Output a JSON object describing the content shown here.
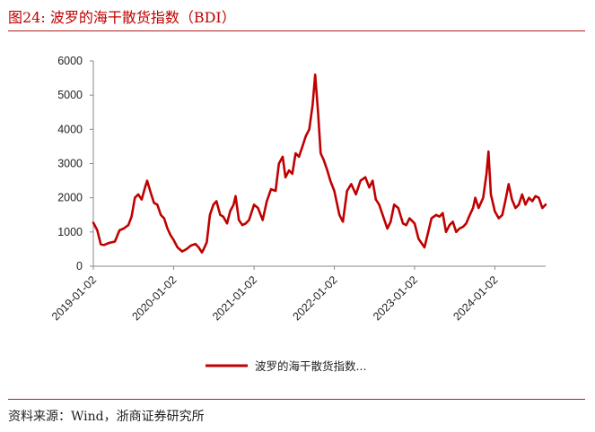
{
  "figure": {
    "title": "图24:  波罗的海干散货指数（BDI）",
    "source": "资料来源：Wind，浙商证券研究所"
  },
  "chart_data": {
    "type": "line",
    "title": "",
    "xlabel": "",
    "ylabel": "",
    "ylim": [
      0,
      6000
    ],
    "yticks": [
      "0",
      "1000",
      "2000",
      "3000",
      "4000",
      "5000",
      "6000"
    ],
    "xtick_labels": [
      "2019-01-02",
      "2020-01-02",
      "2021-01-02",
      "2022-01-02",
      "2023-01-02",
      "2024-01-02"
    ],
    "x_range": [
      "2019-01-02",
      "2024-08-20"
    ],
    "grid": false,
    "legend": "bottom-center",
    "line_color": "#c00000",
    "series": [
      {
        "name": "波罗的海干散货指数...",
        "x": [
          "2019-01-02",
          "2019-01-20",
          "2019-02-05",
          "2019-02-20",
          "2019-03-15",
          "2019-04-10",
          "2019-05-01",
          "2019-05-20",
          "2019-06-10",
          "2019-06-25",
          "2019-07-10",
          "2019-07-25",
          "2019-08-10",
          "2019-08-25",
          "2019-09-04",
          "2019-09-20",
          "2019-10-05",
          "2019-10-20",
          "2019-11-05",
          "2019-11-20",
          "2019-12-05",
          "2019-12-20",
          "2020-01-02",
          "2020-01-20",
          "2020-02-10",
          "2020-03-01",
          "2020-03-20",
          "2020-04-10",
          "2020-04-25",
          "2020-05-10",
          "2020-05-18",
          "2020-06-01",
          "2020-06-15",
          "2020-07-01",
          "2020-07-15",
          "2020-08-01",
          "2020-08-15",
          "2020-09-01",
          "2020-09-15",
          "2020-10-01",
          "2020-10-10",
          "2020-10-25",
          "2020-11-10",
          "2020-11-25",
          "2020-12-10",
          "2021-01-02",
          "2021-01-20",
          "2021-02-10",
          "2021-03-01",
          "2021-03-20",
          "2021-04-10",
          "2021-04-25",
          "2021-05-12",
          "2021-05-25",
          "2021-06-10",
          "2021-06-25",
          "2021-07-10",
          "2021-07-25",
          "2021-08-10",
          "2021-08-25",
          "2021-09-10",
          "2021-09-25",
          "2021-10-07",
          "2021-10-20",
          "2021-11-01",
          "2021-11-15",
          "2021-12-01",
          "2021-12-15",
          "2022-01-02",
          "2022-01-25",
          "2022-02-10",
          "2022-03-01",
          "2022-03-20",
          "2022-04-10",
          "2022-05-01",
          "2022-05-23",
          "2022-06-10",
          "2022-06-25",
          "2022-07-10",
          "2022-07-25",
          "2022-08-10",
          "2022-08-31",
          "2022-09-15",
          "2022-10-01",
          "2022-10-20",
          "2022-11-10",
          "2022-11-25",
          "2022-12-10",
          "2023-01-02",
          "2023-01-20",
          "2023-02-16",
          "2023-03-05",
          "2023-03-20",
          "2023-04-10",
          "2023-04-25",
          "2023-05-10",
          "2023-05-25",
          "2023-06-10",
          "2023-06-25",
          "2023-07-10",
          "2023-07-25",
          "2023-08-10",
          "2023-08-25",
          "2023-09-10",
          "2023-09-25",
          "2023-10-05",
          "2023-10-20",
          "2023-11-10",
          "2023-11-25",
          "2023-12-04",
          "2023-12-15",
          "2024-01-02",
          "2024-01-20",
          "2024-02-05",
          "2024-02-20",
          "2024-03-05",
          "2024-03-20",
          "2024-04-05",
          "2024-04-20",
          "2024-05-05",
          "2024-05-20",
          "2024-06-05",
          "2024-06-20",
          "2024-07-05",
          "2024-07-20",
          "2024-08-05",
          "2024-08-20"
        ],
        "y": [
          1270,
          1050,
          640,
          620,
          680,
          720,
          1050,
          1100,
          1200,
          1450,
          2000,
          2100,
          1950,
          2300,
          2500,
          2150,
          1850,
          1800,
          1500,
          1400,
          1100,
          900,
          770,
          550,
          430,
          500,
          600,
          650,
          550,
          400,
          500,
          700,
          1500,
          1800,
          1900,
          1500,
          1450,
          1250,
          1600,
          1800,
          2050,
          1350,
          1200,
          1250,
          1350,
          1800,
          1700,
          1350,
          1900,
          2250,
          2200,
          3000,
          3200,
          2600,
          2800,
          2700,
          3300,
          3200,
          3500,
          3800,
          4000,
          4700,
          5600,
          4500,
          3300,
          3100,
          2800,
          2500,
          2200,
          1500,
          1300,
          2200,
          2400,
          2100,
          2500,
          2600,
          2300,
          2500,
          1950,
          1800,
          1500,
          1100,
          1300,
          1800,
          1700,
          1250,
          1200,
          1400,
          1250,
          800,
          550,
          1000,
          1400,
          1500,
          1450,
          1550,
          1000,
          1200,
          1300,
          1000,
          1100,
          1150,
          1250,
          1500,
          1700,
          2000,
          1700,
          2000,
          2700,
          3350,
          2100,
          1600,
          1400,
          1500,
          1950,
          2400,
          1950,
          1700,
          1800,
          2100,
          1800,
          2000,
          1900,
          2050,
          2000,
          1700,
          1800
        ]
      }
    ]
  }
}
